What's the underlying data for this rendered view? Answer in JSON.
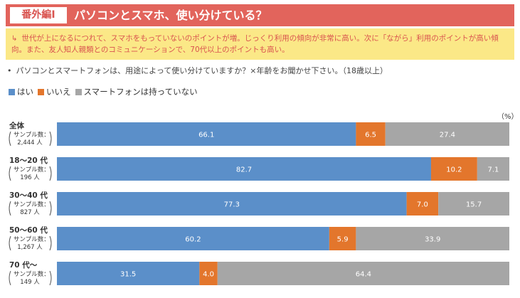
{
  "header": {
    "badge": "番外編Ⅰ",
    "title": "パソコンとスマホ、使い分けている？"
  },
  "note": {
    "arrow": "↳",
    "text": "世代が上になるにつれて、スマホをもっていないのポイントが増。じっくり利用の傾向が非常に高い。次に「ながら」利用のポイントが高い傾向。また、友人知人親類とのコミュニケーションで、70代以上のポイントも高い。"
  },
  "question": {
    "bullet": "•",
    "text": "パソコンとスマートフォンは、用途によって使い分けていますか？×年齢をお聞かせ下さい。（18歳以上）"
  },
  "colors": {
    "yes": "#5b8fc9",
    "no": "#e3762c",
    "none": "#a6a6a6",
    "header": "#e2645c",
    "note_bg": "#fbe887"
  },
  "chart_data": {
    "type": "bar",
    "orientation": "horizontal",
    "stacked": true,
    "unit": "（%）",
    "xlim": [
      0,
      100
    ],
    "categories": [
      {
        "name": "全体",
        "sample_label": "サンプル数",
        "sample": "2,444 人"
      },
      {
        "name": "18～20 代",
        "sample_label": "サンプル数",
        "sample": "196 人"
      },
      {
        "name": "30～40 代",
        "sample_label": "サンプル数",
        "sample": "827 人"
      },
      {
        "name": "50～60 代",
        "sample_label": "サンプル数",
        "sample": "1,267 人"
      },
      {
        "name": "70 代～",
        "sample_label": "サンプル数",
        "sample": "149 人"
      }
    ],
    "series": [
      {
        "name": "はい",
        "color": "#5b8fc9",
        "values": [
          66.1,
          82.7,
          77.3,
          60.2,
          31.5
        ]
      },
      {
        "name": "いいえ",
        "color": "#e3762c",
        "values": [
          6.5,
          10.2,
          7.0,
          5.9,
          4.0
        ]
      },
      {
        "name": "スマートフォンは持っていない",
        "color": "#a6a6a6",
        "values": [
          27.4,
          7.1,
          15.7,
          33.9,
          64.4
        ]
      }
    ],
    "value_labels": [
      [
        "66.1",
        "6.5",
        "27.4"
      ],
      [
        "82.7",
        "10.2",
        "7.1"
      ],
      [
        "77.3",
        "7.0",
        "15.7"
      ],
      [
        "60.2",
        "5.9",
        "33.9"
      ],
      [
        "31.5",
        "4.0",
        "64.4"
      ]
    ]
  }
}
